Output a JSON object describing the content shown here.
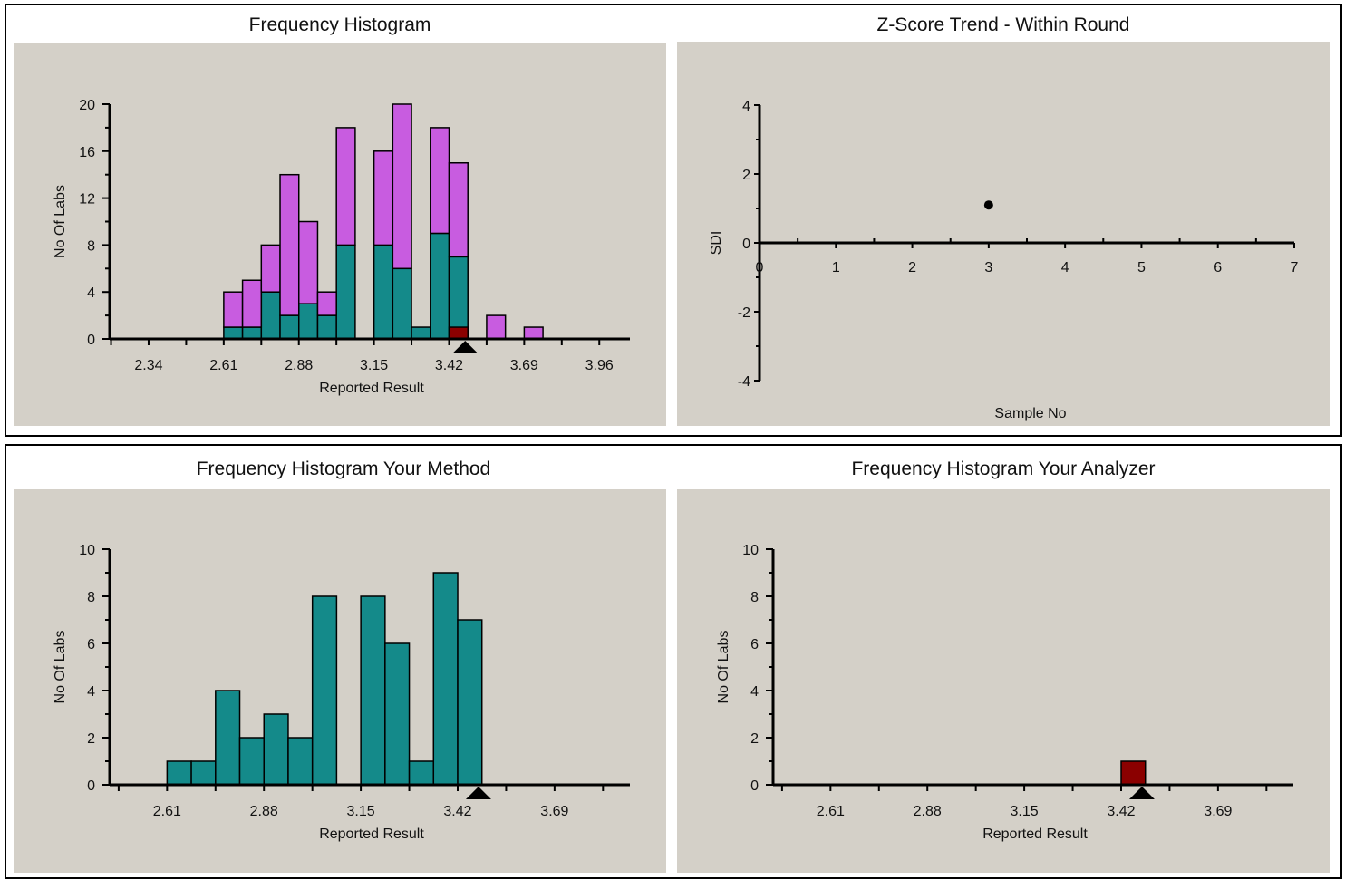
{
  "colors": {
    "lab_bar": "#148a8a",
    "other_bar": "#c85ce0",
    "your_result_bar": "#8b0000",
    "marker": "#000000",
    "plot_bg": "#d4d0c8"
  },
  "titles": {
    "top_left": "Frequency Histogram",
    "top_right": "Z-Score Trend - Within Round",
    "bottom_left": "Frequency Histogram Your Method",
    "bottom_right": "Frequency Histogram Your  Analyzer"
  },
  "chart_data": [
    {
      "id": "freq_hist",
      "type": "bar",
      "stacked": true,
      "xlabel": "Reported Result",
      "ylabel": "No Of Labs",
      "xlim": [
        2.2,
        4.07
      ],
      "ylim": [
        0,
        20
      ],
      "x_ticks": [
        "2.34",
        "2.61",
        "2.88",
        "3.15",
        "3.42",
        "3.69",
        "3.96"
      ],
      "x_tick_values": [
        2.34,
        2.61,
        2.88,
        3.15,
        3.42,
        3.69,
        3.96
      ],
      "y_ticks": [
        "0",
        "4",
        "8",
        "12",
        "16",
        "20"
      ],
      "y_tick_values": [
        0,
        4,
        8,
        12,
        16,
        20
      ],
      "bin_width": 0.0675,
      "bins": [
        2.6438,
        2.7113,
        2.7788,
        2.8463,
        2.9138,
        2.9813,
        3.0488,
        3.1163,
        3.1838,
        3.2513,
        3.3188,
        3.3863,
        3.4538,
        3.5213,
        3.5888,
        3.6563,
        3.7238
      ],
      "series": [
        {
          "values": [
            1,
            1,
            4,
            2,
            3,
            2,
            8,
            0,
            8,
            6,
            1,
            9,
            7,
            0,
            0,
            0,
            0
          ],
          "color": "#148a8a"
        },
        {
          "values": [
            3,
            4,
            4,
            12,
            7,
            2,
            10,
            0,
            8,
            14,
            0,
            9,
            8,
            0,
            2,
            0,
            1
          ],
          "color": "#c85ce0"
        }
      ],
      "your_result": {
        "x": 3.4538,
        "value": 1,
        "color": "#8b0000"
      },
      "marker_x": 3.478
    },
    {
      "id": "zscore_trend",
      "type": "scatter",
      "xlabel": "Sample No",
      "ylabel": "SDI",
      "xlim": [
        0,
        7
      ],
      "ylim": [
        -4,
        4
      ],
      "x_ticks": [
        "0",
        "1",
        "2",
        "3",
        "4",
        "5",
        "6",
        "7"
      ],
      "x_tick_values": [
        0,
        1,
        2,
        3,
        4,
        5,
        6,
        7
      ],
      "y_ticks": [
        "-4",
        "-2",
        "0",
        "2",
        "4"
      ],
      "y_tick_values": [
        -4,
        -2,
        0,
        2,
        4
      ],
      "points": [
        {
          "x": 3,
          "y": 1.1
        }
      ]
    },
    {
      "id": "method_hist",
      "type": "bar",
      "xlabel": "Reported Result",
      "ylabel": "No Of Labs",
      "xlim": [
        2.45,
        3.9
      ],
      "ylim": [
        0,
        10
      ],
      "x_ticks": [
        "2.61",
        "2.88",
        "3.15",
        "3.42",
        "3.69"
      ],
      "x_tick_values": [
        2.61,
        2.88,
        3.15,
        3.42,
        3.69
      ],
      "y_ticks": [
        "0",
        "2",
        "4",
        "6",
        "8",
        "10"
      ],
      "y_tick_values": [
        0,
        2,
        4,
        6,
        8,
        10
      ],
      "bin_width": 0.0675,
      "bins": [
        2.6438,
        2.7113,
        2.7788,
        2.8463,
        2.9138,
        2.9813,
        3.0488,
        3.1163,
        3.1838,
        3.2513,
        3.3188,
        3.3863,
        3.4538
      ],
      "series": [
        {
          "values": [
            1,
            1,
            4,
            2,
            3,
            2,
            8,
            0,
            8,
            6,
            1,
            9,
            7
          ],
          "color": "#148a8a"
        }
      ],
      "marker_x": 3.478
    },
    {
      "id": "analyzer_hist",
      "type": "bar",
      "xlabel": "Reported Result",
      "ylabel": "No Of Labs",
      "xlim": [
        2.45,
        3.9
      ],
      "ylim": [
        0,
        10
      ],
      "x_ticks": [
        "2.61",
        "2.88",
        "3.15",
        "3.42",
        "3.69"
      ],
      "x_tick_values": [
        2.61,
        2.88,
        3.15,
        3.42,
        3.69
      ],
      "y_ticks": [
        "0",
        "2",
        "4",
        "6",
        "8",
        "10"
      ],
      "y_tick_values": [
        0,
        2,
        4,
        6,
        8,
        10
      ],
      "bin_width": 0.0675,
      "bins": [
        3.4538
      ],
      "series": [
        {
          "values": [
            1
          ],
          "color": "#8b0000"
        }
      ],
      "marker_x": 3.478
    }
  ]
}
